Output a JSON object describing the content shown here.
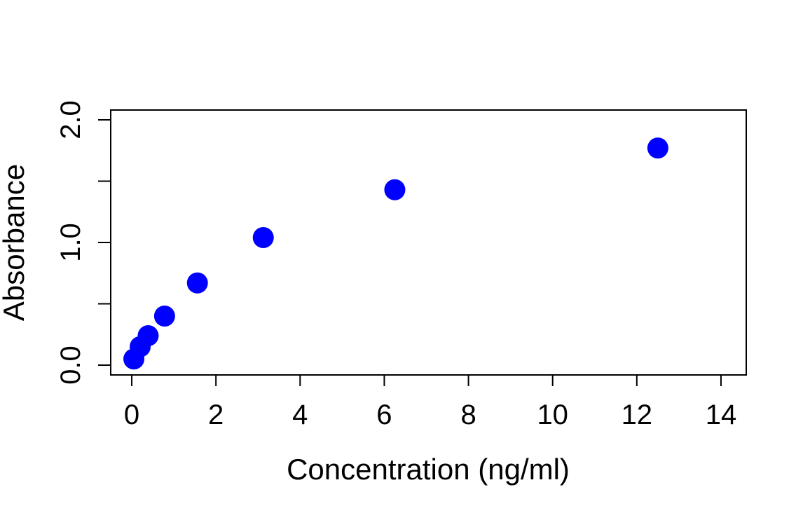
{
  "chart_data": {
    "type": "scatter",
    "title": "",
    "xlabel": "Concentration (ng/ml)",
    "ylabel": "Absorbance",
    "xlim": [
      -0.5,
      14.6
    ],
    "ylim": [
      -0.08,
      2.08
    ],
    "x_ticks": [
      0,
      2,
      4,
      6,
      8,
      10,
      12,
      14
    ],
    "x_tick_labels": [
      "0",
      "2",
      "4",
      "6",
      "8",
      "10",
      "12",
      "14"
    ],
    "y_ticks": [
      0.0,
      0.5,
      1.0,
      1.5,
      2.0
    ],
    "y_tick_labels": [
      "0.0",
      "",
      "1.0",
      "",
      "2.0"
    ],
    "grid": false,
    "marker_color": "#0000ff",
    "series": [
      {
        "x": [
          0.05,
          0.2,
          0.39,
          0.78,
          1.56,
          3.125,
          6.25,
          12.5
        ],
        "y": [
          0.05,
          0.15,
          0.24,
          0.4,
          0.67,
          1.04,
          1.43,
          1.77
        ]
      }
    ]
  }
}
